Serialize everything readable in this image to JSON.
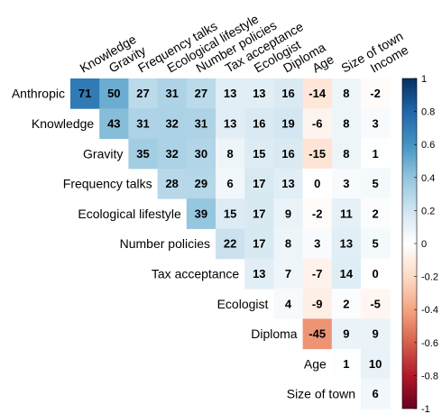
{
  "chart_data": {
    "type": "heatmap",
    "title": "",
    "row_labels": [
      "Anthropic",
      "Knowledge",
      "Gravity",
      "Frequency talks",
      "Ecological lifestyle",
      "Number policies",
      "Tax acceptance",
      "Ecologist",
      "Diploma",
      "Age",
      "Size of town"
    ],
    "col_labels": [
      "Knowledge",
      "Gravity",
      "Frequency talks",
      "Ecological lifestyle",
      "Number policies",
      "Tax acceptance",
      "Ecologist",
      "Diploma",
      "Age",
      "Size of town",
      "Income"
    ],
    "matrix": [
      [
        71,
        50,
        27,
        31,
        27,
        13,
        13,
        16,
        -14,
        8,
        -2
      ],
      [
        null,
        43,
        31,
        32,
        31,
        13,
        16,
        19,
        -6,
        8,
        3
      ],
      [
        null,
        null,
        35,
        32,
        30,
        8,
        15,
        16,
        -15,
        8,
        1
      ],
      [
        null,
        null,
        null,
        28,
        29,
        6,
        17,
        13,
        0,
        3,
        5
      ],
      [
        null,
        null,
        null,
        null,
        39,
        15,
        17,
        9,
        -2,
        11,
        2
      ],
      [
        null,
        null,
        null,
        null,
        null,
        22,
        17,
        8,
        3,
        13,
        5
      ],
      [
        null,
        null,
        null,
        null,
        null,
        null,
        13,
        7,
        -7,
        14,
        0
      ],
      [
        null,
        null,
        null,
        null,
        null,
        null,
        null,
        4,
        -9,
        2,
        -5
      ],
      [
        null,
        null,
        null,
        null,
        null,
        null,
        null,
        null,
        -45,
        9,
        9
      ],
      [
        null,
        null,
        null,
        null,
        null,
        null,
        null,
        null,
        null,
        1,
        10
      ],
      [
        null,
        null,
        null,
        null,
        null,
        null,
        null,
        null,
        null,
        null,
        6
      ]
    ],
    "value_scale": "percent of correlation",
    "colorbar": {
      "min": -1,
      "max": 1,
      "ticks": [
        "1",
        "0.8",
        "0.6",
        "0.4",
        "0.2",
        "0",
        "-0.2",
        "-0.4",
        "-0.6",
        "-0.8",
        "-1"
      ],
      "colors": {
        "neg": "#67001f",
        "mid": "#ffffff",
        "pos": "#053061"
      }
    },
    "grid": false
  }
}
